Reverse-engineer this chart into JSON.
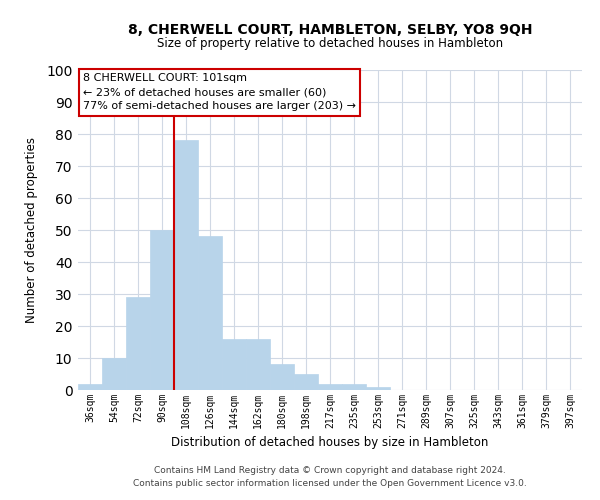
{
  "title": "8, CHERWELL COURT, HAMBLETON, SELBY, YO8 9QH",
  "subtitle": "Size of property relative to detached houses in Hambleton",
  "xlabel": "Distribution of detached houses by size in Hambleton",
  "ylabel": "Number of detached properties",
  "bar_color": "#b8d4ea",
  "bar_edge_color": "#b8d4ea",
  "categories": [
    "36sqm",
    "54sqm",
    "72sqm",
    "90sqm",
    "108sqm",
    "126sqm",
    "144sqm",
    "162sqm",
    "180sqm",
    "198sqm",
    "217sqm",
    "235sqm",
    "253sqm",
    "271sqm",
    "289sqm",
    "307sqm",
    "325sqm",
    "343sqm",
    "361sqm",
    "379sqm",
    "397sqm"
  ],
  "values": [
    2,
    10,
    29,
    50,
    78,
    48,
    16,
    16,
    8,
    5,
    2,
    2,
    1,
    0,
    0,
    0,
    0,
    0,
    0,
    0,
    0
  ],
  "ylim": [
    0,
    100
  ],
  "yticks": [
    0,
    10,
    20,
    30,
    40,
    50,
    60,
    70,
    80,
    90,
    100
  ],
  "annotation_title": "8 CHERWELL COURT: 101sqm",
  "annotation_line1": "← 23% of detached houses are smaller (60)",
  "annotation_line2": "77% of semi-detached houses are larger (203) →",
  "annotation_box_color": "#ffffff",
  "annotation_box_edge_color": "#cc0000",
  "vline_x": 3.5,
  "footer1": "Contains HM Land Registry data © Crown copyright and database right 2024.",
  "footer2": "Contains public sector information licensed under the Open Government Licence v3.0.",
  "background_color": "#ffffff",
  "grid_color": "#d0d8e4"
}
